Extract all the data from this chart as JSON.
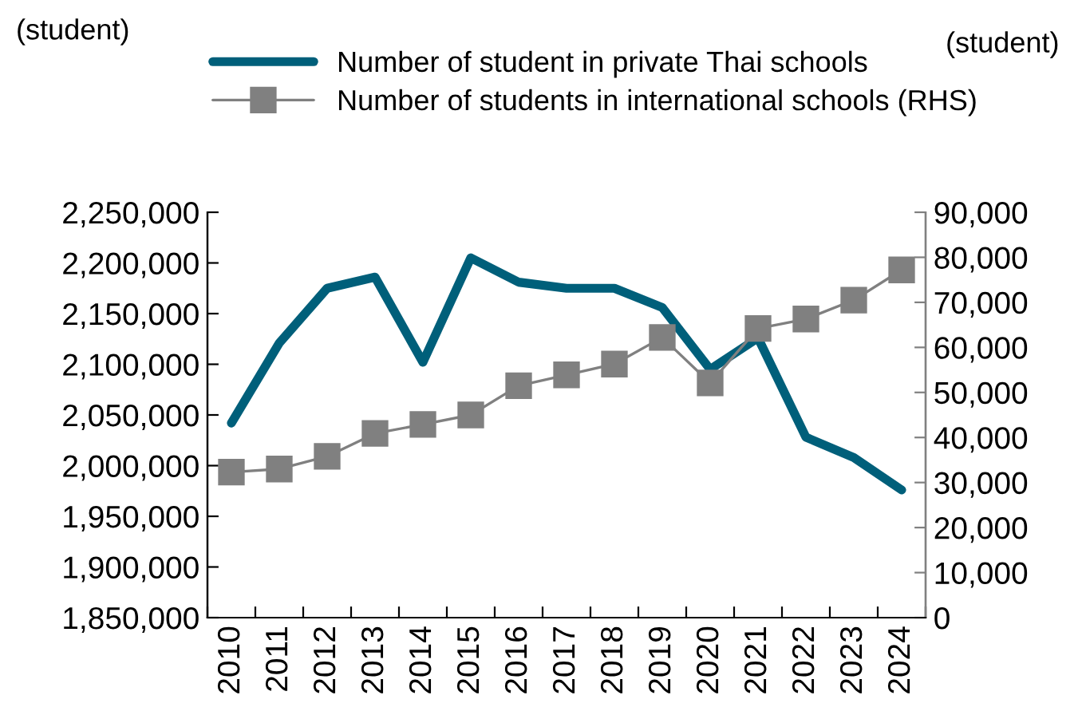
{
  "chart_data": {
    "type": "line",
    "annotations": [
      "(student)"
    ],
    "y2label": "(student)",
    "categories": [
      "2010",
      "2011",
      "2012",
      "2013",
      "2014",
      "2015",
      "2016",
      "2017",
      "2018",
      "2019",
      "2020",
      "2021",
      "2022",
      "2023",
      "2024"
    ],
    "series": [
      {
        "name": "Number of student in private Thai schools",
        "color": "#005f7a",
        "marker": "none",
        "values": [
          2042000,
          2121000,
          2175000,
          2186000,
          2102000,
          2205000,
          2181000,
          2175000,
          2175000,
          2156000,
          2095000,
          2126000,
          2028000,
          2008000,
          1976000
        ]
      },
      {
        "name": "Number of students in international schools (RHS)",
        "color": "#808080",
        "marker": "square",
        "axis": "y2",
        "values": [
          32300,
          33000,
          35800,
          40900,
          42900,
          45000,
          51500,
          53900,
          56300,
          62200,
          52100,
          64200,
          66300,
          70500,
          77200
        ]
      }
    ],
    "ylim": [
      1850000,
      2250000
    ],
    "yticks": [
      {
        "value": 1850000,
        "label": "1,850,000"
      },
      {
        "value": 1900000,
        "label": "1,900,000"
      },
      {
        "value": 1950000,
        "label": "1,950,000"
      },
      {
        "value": 2000000,
        "label": "2,000,000"
      },
      {
        "value": 2050000,
        "label": "2,050,000"
      },
      {
        "value": 2100000,
        "label": "2,100,000"
      },
      {
        "value": 2150000,
        "label": "2,150,000"
      },
      {
        "value": 2200000,
        "label": "2,200,000"
      },
      {
        "value": 2250000,
        "label": "2,250,000"
      }
    ],
    "y2lim": [
      0,
      90000
    ],
    "y2ticks": [
      0,
      {
        "value": 10000,
        "label": "10,000"
      },
      {
        "value": 20000,
        "label": "20,000"
      },
      {
        "value": 30000,
        "label": "30,000"
      },
      {
        "value": 40000,
        "label": "40,000"
      },
      {
        "value": 50000,
        "label": "50,000"
      },
      {
        "value": 60000,
        "label": "60,000"
      },
      {
        "value": 70000,
        "label": "70,000"
      },
      {
        "value": 80000,
        "label": "80,000"
      },
      {
        "value": 90000,
        "label": "90,000"
      }
    ],
    "grid": false,
    "legend": "top"
  }
}
